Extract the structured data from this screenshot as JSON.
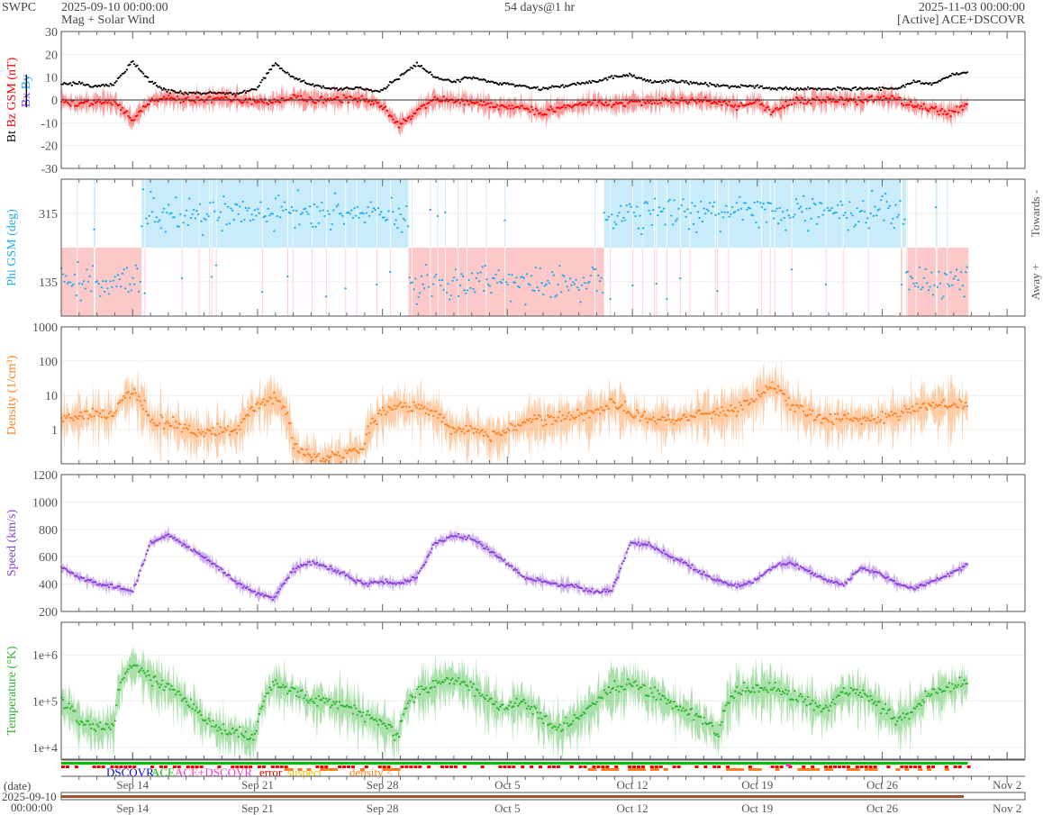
{
  "header": {
    "org": "SWPC",
    "start": "2025-09-10 00:00:00",
    "subtitle": "Mag + Solar Wind",
    "span": "54 days@1 hr",
    "end": "2025-11-03 00:00:00",
    "source": "[Active] ACE+DSCOVR"
  },
  "legend": {
    "dscovr": "DSCOVR",
    "ace": "ACE",
    "ace_dscovr": "ACE+DSCOVR",
    "error": "error",
    "suspect": "suspect",
    "density": "density < 1"
  },
  "date_axis": {
    "label": "(date)",
    "start_date": "2025-09-10",
    "start_time": "00:00:00"
  },
  "colors": {
    "bt": "#000000",
    "bz": "#ff0000",
    "bx": "#8040ff",
    "by": "#00aaff",
    "phi": "#20aaee",
    "towards": "#c8ecfa",
    "away": "#fcc8c8",
    "density": "#ff7f1e",
    "speed": "#8a3fd9",
    "temp": "#2ab52a",
    "brown": "#a0522d"
  },
  "chart_data": {
    "type": "line",
    "x_unit": "days since 2025-09-10 00:00",
    "x_range": [
      0,
      54
    ],
    "data_end_day": 50.8,
    "x_ticks": [
      {
        "day": 4,
        "label": "Sep 14"
      },
      {
        "day": 11,
        "label": "Sep 21"
      },
      {
        "day": 18,
        "label": "Sep 28"
      },
      {
        "day": 25,
        "label": "Oct 5"
      },
      {
        "day": 32,
        "label": "Oct 12"
      },
      {
        "day": 39,
        "label": "Oct 19"
      },
      {
        "day": 46,
        "label": "Oct 26"
      },
      {
        "day": 53,
        "label": "Nov 2"
      }
    ],
    "panels": [
      {
        "id": "mag",
        "ylabel_parts": [
          "Bt",
          "Bz GSM (nT)",
          "Bx",
          "By"
        ],
        "ylim": [
          -30,
          30
        ],
        "scale": "linear",
        "yticks": [
          "30",
          "20",
          "10",
          "0",
          "-10",
          "-20",
          "-30"
        ],
        "ytick_values": [
          30,
          20,
          10,
          0,
          -10,
          -20,
          -30
        ],
        "series": [
          {
            "name": "Bt",
            "values": [
              7,
              7,
              6,
              7,
              17,
              8,
              4,
              3,
              3,
              3,
              3,
              5,
              16,
              10,
              7,
              5,
              5,
              5,
              4,
              10,
              16,
              10,
              8,
              10,
              8,
              7,
              6,
              5,
              6,
              7,
              8,
              10,
              11,
              8,
              8,
              8,
              7,
              6,
              6,
              6,
              5,
              5,
              5,
              5,
              5,
              5,
              5,
              5,
              8,
              7,
              11,
              12
            ]
          },
          {
            "name": "Bz",
            "values": [
              0,
              -2,
              -1,
              -1,
              -9,
              0,
              1,
              0,
              0,
              1,
              0,
              -1,
              -1,
              1,
              0,
              0,
              1,
              0,
              -2,
              -11,
              -5,
              0,
              0,
              -1,
              -2,
              -3,
              -3,
              -6,
              -3,
              -3,
              -1,
              -2,
              -1,
              -1,
              0,
              0,
              0,
              -1,
              -3,
              -1,
              -5,
              -1,
              0,
              0,
              0,
              0,
              1,
              0,
              -3,
              -4,
              -6,
              -2
            ]
          }
        ]
      },
      {
        "id": "phi",
        "ylabel": "Phi GSM (deg)",
        "right_labels": [
          "Towards -",
          "Away +"
        ],
        "ylim": [
          45,
          405
        ],
        "scale": "linear",
        "yticks": [
          "315",
          "135"
        ],
        "ytick_values": [
          315,
          135
        ],
        "series": [
          {
            "name": "Phi",
            "values": [
              135,
              135,
              135,
              135,
              135,
              315,
              315,
              315,
              315,
              315,
              315,
              315,
              315,
              315,
              315,
              315,
              315,
              315,
              315,
              315,
              135,
              135,
              135,
              135,
              135,
              135,
              135,
              135,
              135,
              135,
              135,
              315,
              315,
              315,
              315,
              315,
              315,
              315,
              315,
              315,
              315,
              315,
              315,
              315,
              315,
              315,
              315,
              315,
              135,
              135,
              135,
              135
            ]
          }
        ]
      },
      {
        "id": "density",
        "ylabel": "Density (1/cm³)",
        "ylim": [
          0.1,
          1000
        ],
        "scale": "log",
        "yticks": [
          "1000",
          "100",
          "10",
          "1"
        ],
        "ytick_values": [
          1000,
          100,
          10,
          1
        ],
        "series": [
          {
            "name": "Density",
            "values": [
              2,
              2.5,
              3,
              3,
              12,
              2,
              1.5,
              1,
              0.8,
              1,
              1,
              5,
              8,
              0.3,
              0.15,
              0.15,
              0.2,
              0.3,
              3,
              5,
              5,
              3,
              1,
              1,
              0.7,
              0.7,
              1.5,
              2,
              2,
              3,
              3,
              6,
              3,
              2,
              2,
              2,
              3,
              3,
              4,
              8,
              20,
              5,
              3,
              2,
              2,
              2,
              2,
              3,
              4,
              6,
              5,
              5
            ]
          }
        ]
      },
      {
        "id": "speed",
        "ylabel": "Speed (km/s)",
        "ylim": [
          200,
          1200
        ],
        "scale": "linear",
        "yticks": [
          "1200",
          "1000",
          "800",
          "600",
          "400",
          "200"
        ],
        "ytick_values": [
          1200,
          1000,
          800,
          600,
          400,
          200
        ],
        "series": [
          {
            "name": "Speed",
            "values": [
              520,
              450,
              400,
              380,
              340,
              700,
              760,
              680,
              600,
              500,
              400,
              330,
              300,
              500,
              560,
              520,
              470,
              400,
              420,
              400,
              450,
              700,
              750,
              740,
              650,
              560,
              450,
              420,
              400,
              380,
              340,
              360,
              700,
              690,
              620,
              560,
              480,
              420,
              390,
              420,
              520,
              560,
              500,
              430,
              400,
              520,
              480,
              400,
              370,
              420,
              480,
              540
            ]
          }
        ]
      },
      {
        "id": "temp",
        "ylabel": "Temperature (°K)",
        "ylim": [
          5600,
          5000000
        ],
        "scale": "log",
        "yticks": [
          "1e+6",
          "1e+5",
          "1e+4"
        ],
        "ytick_values": [
          1000000,
          100000,
          10000
        ],
        "series": [
          {
            "name": "Temperature",
            "values": [
              100000,
              40000,
              25000,
              32000,
              630000,
              320000,
              200000,
              100000,
              40000,
              25000,
              20000,
              16000,
              250000,
              160000,
              100000,
              100000,
              80000,
              50000,
              32000,
              16000,
              160000,
              200000,
              320000,
              200000,
              100000,
              63000,
              100000,
              40000,
              25000,
              40000,
              80000,
              200000,
              250000,
              160000,
              100000,
              63000,
              40000,
              20000,
              160000,
              200000,
              200000,
              125000,
              100000,
              63000,
              160000,
              160000,
              80000,
              40000,
              63000,
              160000,
              200000,
              250000
            ]
          }
        ]
      }
    ]
  }
}
